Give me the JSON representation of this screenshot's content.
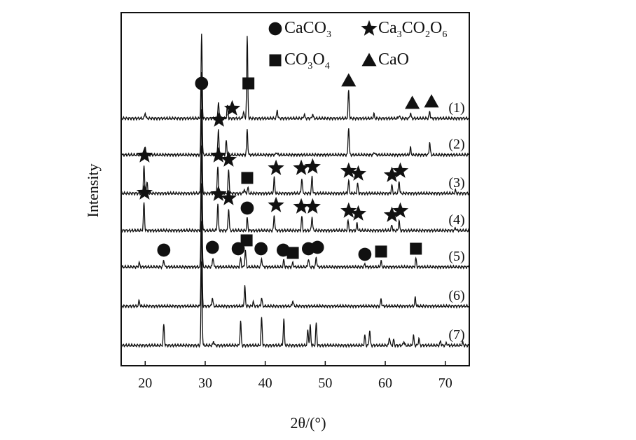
{
  "chart_data": {
    "type": "line",
    "xlabel": "2θ/(°)",
    "ylabel": "Intensity",
    "xlim": [
      16,
      74
    ],
    "xticks": [
      20,
      30,
      40,
      50,
      60,
      70
    ],
    "xtick_labels": [
      "20",
      "30",
      "40",
      "50",
      "60",
      "70"
    ],
    "grid": false,
    "legend_position": "top-right",
    "legend": [
      {
        "symbol": "circle",
        "parts": [
          {
            "t": "CaCO",
            "s": "n"
          },
          {
            "t": "3",
            "s": "sub"
          }
        ]
      },
      {
        "symbol": "star",
        "parts": [
          {
            "t": "Ca",
            "s": "n"
          },
          {
            "t": "3",
            "s": "sub"
          },
          {
            "t": "CO",
            "s": "n"
          },
          {
            "t": "2",
            "s": "sub"
          },
          {
            "t": "O",
            "s": "n"
          },
          {
            "t": "6",
            "s": "sub"
          }
        ]
      },
      {
        "symbol": "square",
        "parts": [
          {
            "t": "CO",
            "s": "n"
          },
          {
            "t": "3",
            "s": "sub"
          },
          {
            "t": "O",
            "s": "n"
          },
          {
            "t": "4",
            "s": "sub"
          }
        ]
      },
      {
        "symbol": "triangle",
        "parts": [
          {
            "t": "CaO",
            "s": "n"
          }
        ]
      }
    ],
    "series": [
      {
        "name": "(1)",
        "peaks": [
          [
            20,
            0.2
          ],
          [
            29.4,
            3.0
          ],
          [
            32.2,
            0.55
          ],
          [
            33.7,
            0.45
          ],
          [
            36.4,
            0.25
          ],
          [
            37.0,
            2.9
          ],
          [
            42.0,
            0.3
          ],
          [
            46.5,
            0.15
          ],
          [
            47.9,
            0.15
          ],
          [
            53.9,
            1.0
          ],
          [
            58.1,
            0.15
          ],
          [
            62.3,
            0.1
          ],
          [
            64.2,
            0.2
          ],
          [
            67.4,
            0.25
          ]
        ],
        "markers": [
          {
            "x": 29.4,
            "symbol": "circle"
          },
          {
            "x": 34.5,
            "symbol": "star"
          },
          {
            "x": 37.2,
            "symbol": "square"
          },
          {
            "x": 53.9,
            "symbol": "triangle"
          },
          {
            "x": 64.5,
            "symbol": "triangle"
          },
          {
            "x": 67.7,
            "symbol": "triangle"
          }
        ]
      },
      {
        "name": "(2)",
        "peaks": [
          [
            20.0,
            0.25
          ],
          [
            29.4,
            3.0
          ],
          [
            32.2,
            0.9
          ],
          [
            33.5,
            0.5
          ],
          [
            37.0,
            0.9
          ],
          [
            41.9,
            0.1
          ],
          [
            53.9,
            1.0
          ],
          [
            58.2,
            0.1
          ],
          [
            64.2,
            0.25
          ],
          [
            67.4,
            0.45
          ]
        ],
        "markers": [
          {
            "x": 32.3,
            "symbol": "star"
          }
        ]
      },
      {
        "name": "(3)",
        "peaks": [
          [
            19.8,
            1.0
          ],
          [
            20.3,
            0.4
          ],
          [
            29.4,
            3.0
          ],
          [
            32.1,
            1.0
          ],
          [
            33.9,
            0.85
          ],
          [
            36.5,
            0.15
          ],
          [
            37.1,
            0.2
          ],
          [
            41.5,
            0.55
          ],
          [
            46.1,
            0.55
          ],
          [
            47.8,
            0.6
          ],
          [
            53.9,
            0.45
          ],
          [
            55.4,
            0.35
          ],
          [
            61.1,
            0.3
          ],
          [
            62.3,
            0.45
          ],
          [
            71.7,
            0.1
          ]
        ],
        "markers": [
          {
            "x": 19.9,
            "symbol": "star"
          },
          {
            "x": 32.2,
            "symbol": "star"
          },
          {
            "x": 33.9,
            "symbol": "star"
          },
          {
            "x": 37.0,
            "symbol": "square"
          },
          {
            "x": 41.8,
            "symbol": "star"
          },
          {
            "x": 46.0,
            "symbol": "star"
          },
          {
            "x": 47.9,
            "symbol": "star"
          },
          {
            "x": 53.9,
            "symbol": "star"
          },
          {
            "x": 55.5,
            "symbol": "star"
          },
          {
            "x": 61.1,
            "symbol": "star"
          },
          {
            "x": 62.5,
            "symbol": "star"
          }
        ]
      },
      {
        "name": "(4)",
        "peaks": [
          [
            19.8,
            1.0
          ],
          [
            29.4,
            3.0
          ],
          [
            32.1,
            0.95
          ],
          [
            33.9,
            0.8
          ],
          [
            37.0,
            0.45
          ],
          [
            41.5,
            0.55
          ],
          [
            46.1,
            0.5
          ],
          [
            47.8,
            0.5
          ],
          [
            53.8,
            0.35
          ],
          [
            55.3,
            0.25
          ],
          [
            61.1,
            0.2
          ],
          [
            62.3,
            0.35
          ],
          [
            71.7,
            0.1
          ]
        ],
        "markers": [
          {
            "x": 19.9,
            "symbol": "star"
          },
          {
            "x": 32.2,
            "symbol": "star"
          },
          {
            "x": 33.9,
            "symbol": "star"
          },
          {
            "x": 37.0,
            "symbol": "circle"
          },
          {
            "x": 41.8,
            "symbol": "star"
          },
          {
            "x": 46.0,
            "symbol": "star"
          },
          {
            "x": 47.9,
            "symbol": "star"
          },
          {
            "x": 53.9,
            "symbol": "star"
          },
          {
            "x": 55.5,
            "symbol": "star"
          },
          {
            "x": 61.1,
            "symbol": "star"
          },
          {
            "x": 62.5,
            "symbol": "star"
          }
        ]
      },
      {
        "name": "(5)",
        "peaks": [
          [
            19.0,
            0.15
          ],
          [
            23.1,
            0.25
          ],
          [
            29.4,
            3.0
          ],
          [
            31.3,
            0.35
          ],
          [
            35.9,
            0.3
          ],
          [
            36.7,
            0.6
          ],
          [
            39.4,
            0.3
          ],
          [
            43.1,
            0.25
          ],
          [
            44.6,
            0.15
          ],
          [
            47.2,
            0.3
          ],
          [
            48.5,
            0.35
          ],
          [
            56.6,
            0.1
          ],
          [
            59.3,
            0.2
          ],
          [
            65.1,
            0.3
          ]
        ],
        "markers": [
          {
            "x": 23.1,
            "symbol": "circle"
          },
          {
            "x": 31.2,
            "symbol": "circle"
          },
          {
            "x": 35.5,
            "symbol": "circle"
          },
          {
            "x": 36.9,
            "symbol": "square"
          },
          {
            "x": 39.3,
            "symbol": "circle"
          },
          {
            "x": 43.0,
            "symbol": "circle"
          },
          {
            "x": 44.6,
            "symbol": "square"
          },
          {
            "x": 47.2,
            "symbol": "circle"
          },
          {
            "x": 48.7,
            "symbol": "circle"
          },
          {
            "x": 56.6,
            "symbol": "circle"
          },
          {
            "x": 59.3,
            "symbol": "square"
          },
          {
            "x": 65.1,
            "symbol": "square"
          }
        ]
      },
      {
        "name": "(6)",
        "peaks": [
          [
            19.0,
            0.2
          ],
          [
            29.4,
            3.0
          ],
          [
            31.2,
            0.3
          ],
          [
            36.6,
            0.7
          ],
          [
            38.0,
            0.15
          ],
          [
            39.4,
            0.3
          ],
          [
            44.6,
            0.2
          ],
          [
            59.3,
            0.25
          ],
          [
            65.0,
            0.3
          ]
        ],
        "markers": []
      },
      {
        "name": "(7)",
        "peaks": [
          [
            23.1,
            0.75
          ],
          [
            29.4,
            3.0
          ],
          [
            31.4,
            0.15
          ],
          [
            35.9,
            0.85
          ],
          [
            39.4,
            1.0
          ],
          [
            43.1,
            0.95
          ],
          [
            47.1,
            0.55
          ],
          [
            47.5,
            0.7
          ],
          [
            48.5,
            0.8
          ],
          [
            56.6,
            0.35
          ],
          [
            57.4,
            0.55
          ],
          [
            60.7,
            0.3
          ],
          [
            61.4,
            0.2
          ],
          [
            63.1,
            0.15
          ],
          [
            64.7,
            0.35
          ],
          [
            65.6,
            0.25
          ],
          [
            69.2,
            0.15
          ],
          [
            70.2,
            0.1
          ],
          [
            72.9,
            0.1
          ]
        ],
        "markers": []
      }
    ]
  }
}
